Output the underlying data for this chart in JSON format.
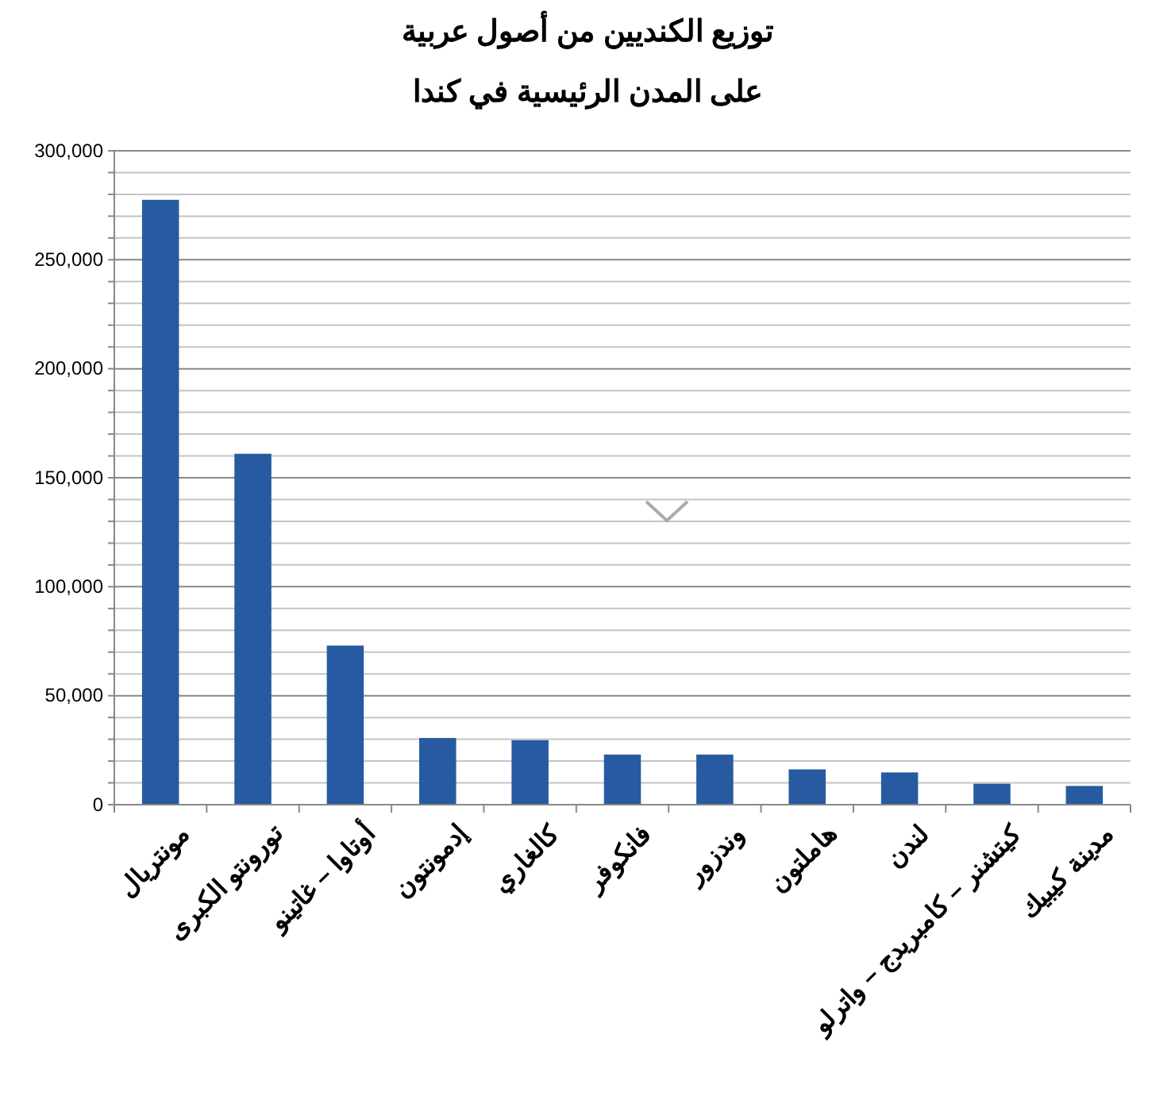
{
  "chart_data": {
    "type": "bar",
    "title": "توزيع الكنديين من أصول عربية\nعلى المدن الرئيسية في كندا",
    "categories": [
      "مونتريال",
      "تورونتو الكبرى",
      "أوتاوا – غاتينو",
      "إدمونتون",
      "كالغاري",
      "فانكوفر",
      "وندزور",
      "هاملتون",
      "لندن",
      "كيتشنر – كامبريدج – واترلو",
      "مدينة كيبيك"
    ],
    "values": [
      277500,
      161000,
      73000,
      30600,
      29600,
      23000,
      23000,
      16200,
      14800,
      9600,
      8600
    ],
    "color": "#275aa0",
    "ylim": [
      0,
      300000
    ],
    "yticks": [
      0,
      {
        "value": 10000,
        "label": null
      },
      {
        "value": 20000,
        "label": null
      },
      {
        "value": 30000,
        "label": null
      },
      {
        "value": 40000,
        "label": null
      },
      {
        "value": 50000,
        "label": "50,000"
      },
      {
        "value": 60000,
        "label": null
      },
      {
        "value": 70000,
        "label": null
      },
      {
        "value": 80000,
        "label": null
      },
      {
        "value": 90000,
        "label": null
      },
      {
        "value": 100000,
        "label": "100,000"
      },
      {
        "value": 110000,
        "label": null
      },
      {
        "value": 120000,
        "label": null
      },
      {
        "value": 130000,
        "label": null
      },
      {
        "value": 140000,
        "label": null
      },
      {
        "value": 150000,
        "label": "150,000"
      },
      {
        "value": 160000,
        "label": null
      },
      {
        "value": 170000,
        "label": null
      },
      {
        "value": 180000,
        "label": null
      },
      {
        "value": 190000,
        "label": null
      },
      {
        "value": 200000,
        "label": "200,000"
      },
      {
        "value": 210000,
        "label": null
      },
      {
        "value": 220000,
        "label": null
      },
      {
        "value": 230000,
        "label": null
      },
      {
        "value": 240000,
        "label": null
      },
      {
        "value": 250000,
        "label": "250,000"
      },
      {
        "value": 260000,
        "label": null
      },
      {
        "value": 270000,
        "label": null
      },
      {
        "value": 280000,
        "label": null
      },
      {
        "value": 290000,
        "label": null
      },
      {
        "value": 300000,
        "label": "300,000"
      }
    ],
    "grid": "y"
  }
}
